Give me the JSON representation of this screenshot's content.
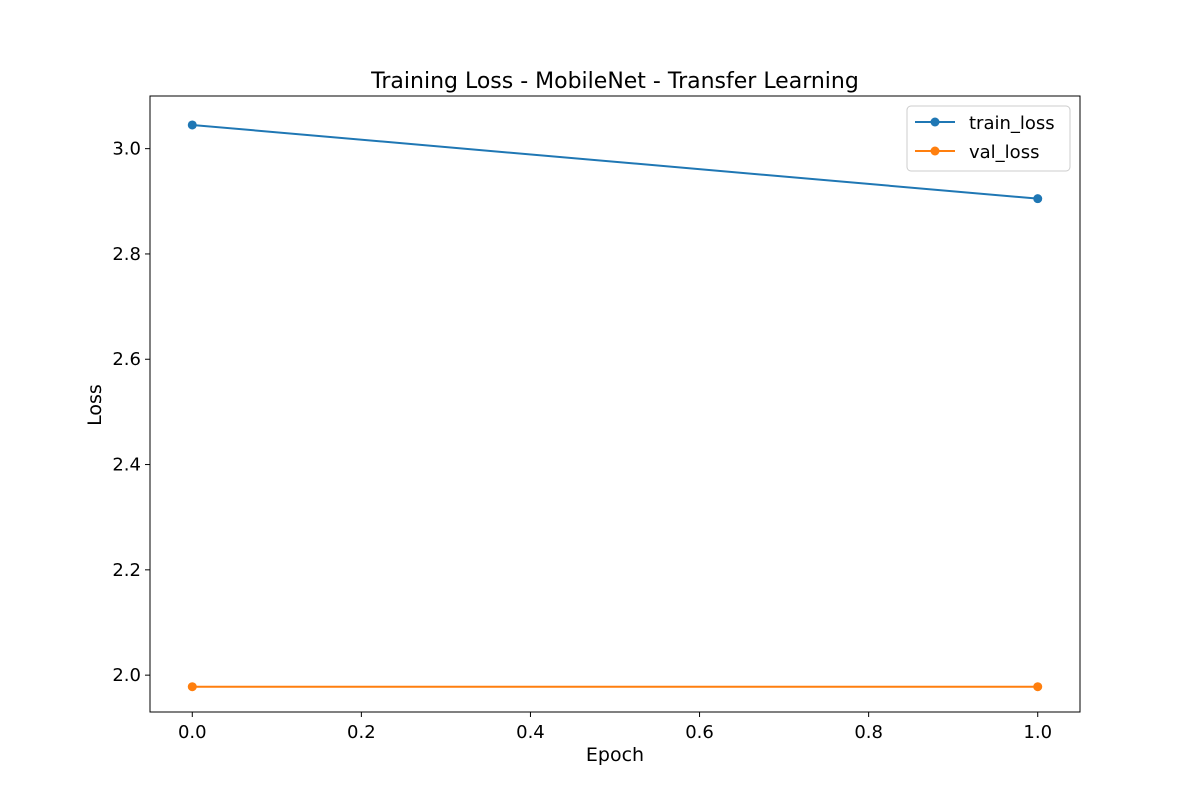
{
  "chart_data": {
    "type": "line",
    "title": "Training Loss - MobileNet - Transfer Learning",
    "xlabel": "Epoch",
    "ylabel": "Loss",
    "xlim": [
      -0.05,
      1.05
    ],
    "ylim": [
      1.93,
      3.1
    ],
    "xticks": [
      "0.0",
      "0.2",
      "0.4",
      "0.6",
      "0.8",
      "1.0"
    ],
    "yticks": [
      "2.0",
      "2.2",
      "2.4",
      "2.6",
      "2.8",
      "3.0"
    ],
    "grid": false,
    "legend_position": "top-right",
    "series": [
      {
        "name": "train_loss",
        "color": "#1f77b4",
        "x": [
          0.0,
          1.0
        ],
        "y": [
          3.045,
          2.905
        ]
      },
      {
        "name": "val_loss",
        "color": "#ff7f0e",
        "x": [
          0.0,
          1.0
        ],
        "y": [
          1.978,
          1.978
        ]
      }
    ]
  }
}
